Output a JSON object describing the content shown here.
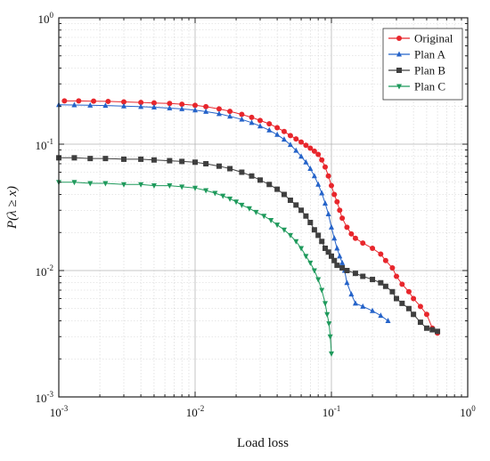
{
  "chart_data": {
    "type": "scatter",
    "title": "",
    "xlabel": "Load loss",
    "ylabel": "P(λ ≥ x)",
    "xscale": "log",
    "yscale": "log",
    "xlim": [
      0.001,
      1
    ],
    "ylim": [
      0.001,
      1
    ],
    "grid": true,
    "legend_position": "top-right",
    "x_ticks": [
      {
        "value": 0.001,
        "base": "10",
        "exp": "-3"
      },
      {
        "value": 0.01,
        "base": "10",
        "exp": "-2"
      },
      {
        "value": 0.1,
        "base": "10",
        "exp": "-1"
      },
      {
        "value": 1,
        "base": "10",
        "exp": "0"
      }
    ],
    "y_ticks": [
      {
        "value": 0.001,
        "base": "10",
        "exp": "-3"
      },
      {
        "value": 0.01,
        "base": "10",
        "exp": "-2"
      },
      {
        "value": 0.1,
        "base": "10",
        "exp": "-1"
      },
      {
        "value": 1,
        "base": "10",
        "exp": "0"
      }
    ],
    "series": [
      {
        "name": "Original",
        "color": "#e8262c",
        "marker": "circle",
        "x": [
          0.0011,
          0.0014,
          0.0018,
          0.0023,
          0.003,
          0.004,
          0.005,
          0.0065,
          0.008,
          0.01,
          0.012,
          0.015,
          0.018,
          0.022,
          0.026,
          0.03,
          0.035,
          0.04,
          0.045,
          0.05,
          0.055,
          0.06,
          0.065,
          0.07,
          0.075,
          0.08,
          0.085,
          0.09,
          0.095,
          0.1,
          0.105,
          0.11,
          0.115,
          0.12,
          0.13,
          0.14,
          0.15,
          0.17,
          0.2,
          0.23,
          0.25,
          0.28,
          0.3,
          0.33,
          0.37,
          0.4,
          0.45,
          0.5,
          0.55,
          0.6
        ],
        "y": [
          0.22,
          0.22,
          0.219,
          0.218,
          0.216,
          0.214,
          0.212,
          0.21,
          0.207,
          0.203,
          0.198,
          0.19,
          0.182,
          0.172,
          0.163,
          0.154,
          0.145,
          0.135,
          0.126,
          0.117,
          0.11,
          0.104,
          0.098,
          0.093,
          0.088,
          0.083,
          0.075,
          0.066,
          0.056,
          0.047,
          0.04,
          0.035,
          0.03,
          0.026,
          0.022,
          0.0195,
          0.018,
          0.0165,
          0.015,
          0.0135,
          0.012,
          0.0105,
          0.009,
          0.0078,
          0.0068,
          0.006,
          0.0052,
          0.0045,
          0.0035,
          0.0032
        ]
      },
      {
        "name": "Plan A",
        "color": "#2563c9",
        "marker": "triangle-up",
        "x": [
          0.001,
          0.0013,
          0.0017,
          0.0022,
          0.003,
          0.004,
          0.005,
          0.0065,
          0.008,
          0.01,
          0.012,
          0.015,
          0.018,
          0.022,
          0.026,
          0.03,
          0.035,
          0.04,
          0.045,
          0.05,
          0.055,
          0.06,
          0.065,
          0.07,
          0.075,
          0.08,
          0.085,
          0.09,
          0.095,
          0.1,
          0.105,
          0.11,
          0.115,
          0.12,
          0.125,
          0.13,
          0.14,
          0.15,
          0.17,
          0.2,
          0.23,
          0.26
        ],
        "y": [
          0.205,
          0.204,
          0.203,
          0.202,
          0.2,
          0.198,
          0.196,
          0.193,
          0.19,
          0.186,
          0.181,
          0.174,
          0.166,
          0.157,
          0.148,
          0.139,
          0.129,
          0.119,
          0.109,
          0.099,
          0.089,
          0.08,
          0.072,
          0.064,
          0.056,
          0.048,
          0.041,
          0.034,
          0.028,
          0.022,
          0.018,
          0.015,
          0.013,
          0.0115,
          0.01,
          0.008,
          0.0065,
          0.0055,
          0.0052,
          0.0048,
          0.0044,
          0.004
        ]
      },
      {
        "name": "Plan B",
        "color": "#3f3f3f",
        "marker": "square",
        "x": [
          0.001,
          0.0013,
          0.0017,
          0.0022,
          0.003,
          0.004,
          0.005,
          0.0065,
          0.008,
          0.01,
          0.012,
          0.015,
          0.018,
          0.022,
          0.026,
          0.03,
          0.035,
          0.04,
          0.045,
          0.05,
          0.055,
          0.06,
          0.065,
          0.07,
          0.075,
          0.08,
          0.085,
          0.09,
          0.095,
          0.1,
          0.105,
          0.11,
          0.12,
          0.13,
          0.15,
          0.17,
          0.2,
          0.23,
          0.25,
          0.28,
          0.3,
          0.33,
          0.37,
          0.4,
          0.45,
          0.5,
          0.55,
          0.6
        ],
        "y": [
          0.078,
          0.078,
          0.077,
          0.077,
          0.076,
          0.076,
          0.075,
          0.074,
          0.073,
          0.072,
          0.07,
          0.067,
          0.064,
          0.06,
          0.056,
          0.052,
          0.048,
          0.044,
          0.04,
          0.036,
          0.033,
          0.03,
          0.027,
          0.024,
          0.021,
          0.019,
          0.017,
          0.015,
          0.014,
          0.013,
          0.012,
          0.011,
          0.0105,
          0.01,
          0.0095,
          0.009,
          0.0085,
          0.008,
          0.0075,
          0.0068,
          0.006,
          0.0055,
          0.005,
          0.0045,
          0.0039,
          0.0035,
          0.0034,
          0.0033
        ]
      },
      {
        "name": "Plan C",
        "color": "#1f9a5c",
        "marker": "triangle-down",
        "x": [
          0.001,
          0.0013,
          0.0017,
          0.0022,
          0.003,
          0.004,
          0.005,
          0.0065,
          0.008,
          0.01,
          0.012,
          0.014,
          0.016,
          0.018,
          0.02,
          0.022,
          0.025,
          0.028,
          0.032,
          0.036,
          0.04,
          0.045,
          0.05,
          0.055,
          0.06,
          0.065,
          0.07,
          0.075,
          0.08,
          0.085,
          0.09,
          0.093,
          0.096,
          0.098,
          0.1
        ],
        "y": [
          0.05,
          0.05,
          0.049,
          0.049,
          0.048,
          0.048,
          0.047,
          0.047,
          0.046,
          0.045,
          0.043,
          0.041,
          0.039,
          0.037,
          0.035,
          0.033,
          0.031,
          0.029,
          0.027,
          0.025,
          0.023,
          0.021,
          0.019,
          0.017,
          0.015,
          0.013,
          0.0115,
          0.01,
          0.0085,
          0.007,
          0.0055,
          0.0045,
          0.0038,
          0.003,
          0.0022
        ]
      }
    ]
  }
}
